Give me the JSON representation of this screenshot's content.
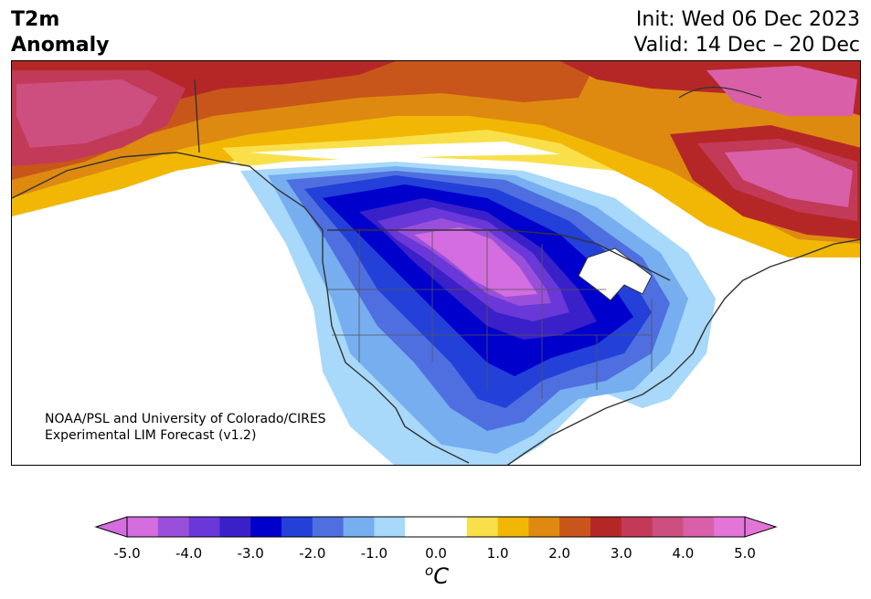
{
  "header": {
    "variable_line1": "T2m",
    "variable_line2": "Anomaly",
    "init_text": "Init: Wed 06 Dec 2023",
    "valid_text": "Valid: 14 Dec – 20 Dec"
  },
  "credit": {
    "line1": "NOAA/PSL and University of Colorado/CIRES",
    "line2": "Experimental LIM Forecast (v1.2)"
  },
  "colorbar": {
    "unit_base": "C",
    "unit_sup": "o",
    "ticks": [
      "-5.0",
      "-4.0",
      "-3.0",
      "-2.0",
      "-1.0",
      "0.0",
      "1.0",
      "2.0",
      "3.0",
      "4.0",
      "5.0"
    ],
    "colors": [
      "#d36de0",
      "#9a4fdb",
      "#6a38d8",
      "#3a20c8",
      "#0000cd",
      "#2340d8",
      "#4f6fe0",
      "#76aef0",
      "#a8d8fa",
      "#ffffff",
      "#ffffff",
      "#f9e04a",
      "#f2b705",
      "#de8a10",
      "#c8561a",
      "#b52727",
      "#c23a57",
      "#cc4f80",
      "#d95fa8",
      "#e374d8"
    ],
    "extend_min_color": "#d36de0",
    "extend_max_color": "#e374d8"
  },
  "map_colors": {
    "cold_extreme": "#d36de0",
    "cold_strong": "#0000cd",
    "cold_mild": "#a8d8fa",
    "warm_mild": "#f9e04a",
    "warm_strong": "#b52727",
    "warm_extreme": "#d95fa8",
    "land_outline": "#333333"
  }
}
